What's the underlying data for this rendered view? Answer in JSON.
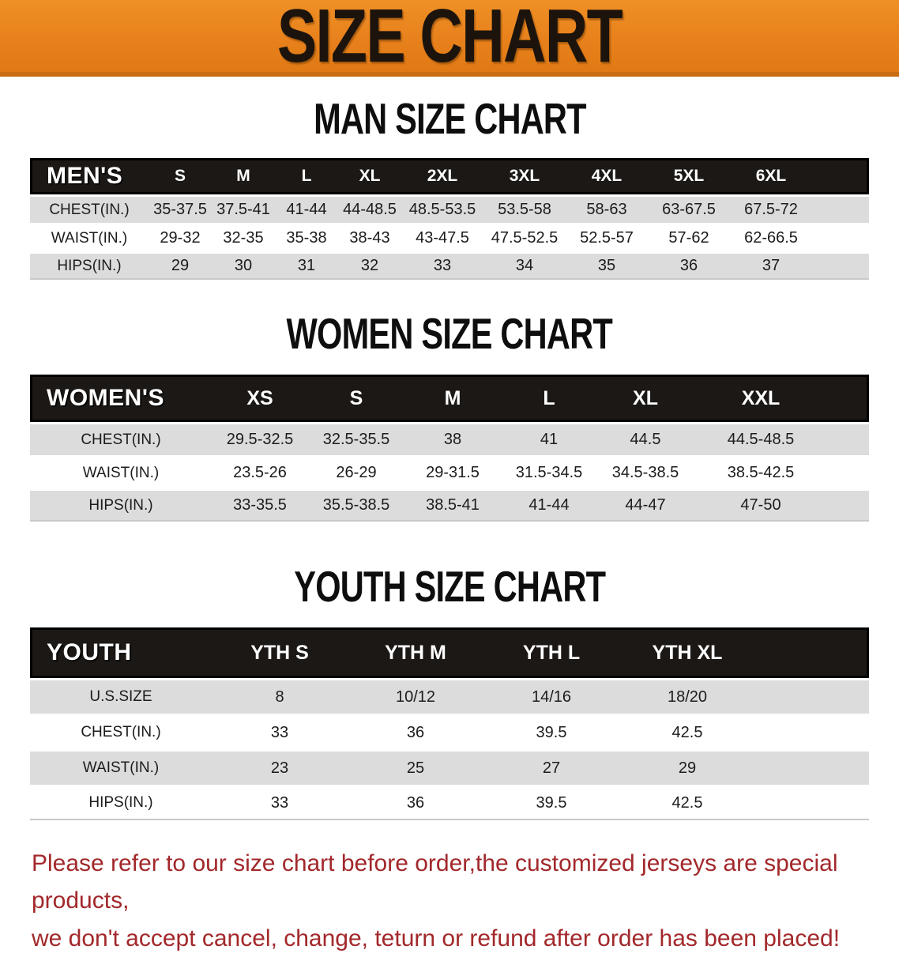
{
  "banner": {
    "title": "SIZE CHART"
  },
  "men": {
    "heading": "MAN SIZE CHART",
    "label": "MEN'S",
    "sizes": [
      "S",
      "M",
      "L",
      "XL",
      "2XL",
      "3XL",
      "4XL",
      "5XL",
      "6XL"
    ],
    "rows": [
      {
        "label": "CHEST(IN.)",
        "values": [
          "35-37.5",
          "37.5-41",
          "41-44",
          "44-48.5",
          "48.5-53.5",
          "53.5-58",
          "58-63",
          "63-67.5",
          "67.5-72"
        ]
      },
      {
        "label": "WAIST(IN.)",
        "values": [
          "29-32",
          "32-35",
          "35-38",
          "38-43",
          "43-47.5",
          "47.5-52.5",
          "52.5-57",
          "57-62",
          "62-66.5"
        ]
      },
      {
        "label": "HIPS(IN.)",
        "values": [
          "29",
          "30",
          "31",
          "32",
          "33",
          "34",
          "35",
          "36",
          "37"
        ]
      }
    ]
  },
  "women": {
    "heading": "WOMEN SIZE CHART",
    "label": "WOMEN'S",
    "sizes": [
      "XS",
      "S",
      "M",
      "L",
      "XL",
      "XXL"
    ],
    "rows": [
      {
        "label": "CHEST(IN.)",
        "values": [
          "29.5-32.5",
          "32.5-35.5",
          "38",
          "41",
          "44.5",
          "44.5-48.5"
        ]
      },
      {
        "label": "WAIST(IN.)",
        "values": [
          "23.5-26",
          "26-29",
          "29-31.5",
          "31.5-34.5",
          "34.5-38.5",
          "38.5-42.5"
        ]
      },
      {
        "label": "HIPS(IN.)",
        "values": [
          "33-35.5",
          "35.5-38.5",
          "38.5-41",
          "41-44",
          "44-47",
          "47-50"
        ]
      }
    ]
  },
  "youth": {
    "heading": "YOUTH SIZE CHART",
    "label": "YOUTH",
    "sizes": [
      "YTH S",
      "YTH M",
      "YTH L",
      "YTH XL"
    ],
    "rows": [
      {
        "label": "U.S.SIZE",
        "values": [
          "8",
          "10/12",
          "14/16",
          "18/20"
        ]
      },
      {
        "label": "CHEST(IN.)",
        "values": [
          "33",
          "36",
          "39.5",
          "42.5"
        ]
      },
      {
        "label": "WAIST(IN.)",
        "values": [
          "23",
          "25",
          "27",
          "29"
        ]
      },
      {
        "label": "HIPS(IN.)",
        "values": [
          "33",
          "36",
          "39.5",
          "42.5"
        ]
      }
    ]
  },
  "notice": {
    "line1": "Please refer to our size chart before order,the customized jerseys are special products,",
    "line2": "we don't accept cancel, change, teturn or refund after order has been placed!"
  },
  "colors": {
    "banner_orange": "#e8811c",
    "banner_border": "#c96d10",
    "table_header_bg": "#1c1815",
    "row_gray": "#dcdcdc",
    "notice_red": "#a2282b"
  }
}
